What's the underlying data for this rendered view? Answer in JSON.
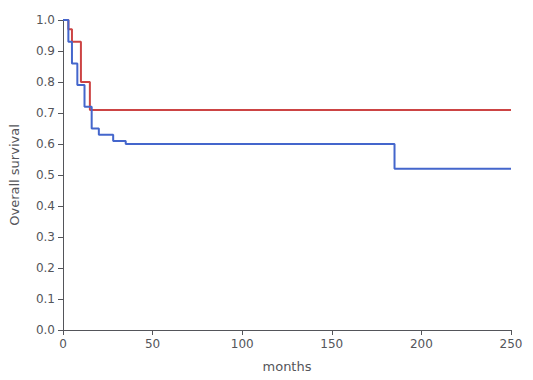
{
  "chart_data": {
    "type": "line",
    "line_style": "step",
    "xlabel": "months",
    "ylabel": "Overall survival",
    "series": [
      {
        "color": "#cc4444",
        "x": [
          0,
          3,
          5,
          10,
          15,
          35,
          250
        ],
        "values": [
          1.0,
          0.97,
          0.93,
          0.8,
          0.71,
          0.71,
          0.71
        ]
      },
      {
        "color": "#4466cc",
        "x": [
          0,
          3,
          5,
          8,
          12,
          16,
          20,
          28,
          35,
          105,
          185,
          250
        ],
        "values": [
          1.0,
          0.93,
          0.86,
          0.79,
          0.72,
          0.65,
          0.63,
          0.61,
          0.6,
          0.6,
          0.52,
          0.52
        ]
      }
    ],
    "xlim": [
      0,
      250
    ],
    "xticks": [
      0,
      50,
      100,
      150,
      200,
      250
    ],
    "ylim": [
      0.0,
      1.0
    ],
    "yticks": [
      {
        "value": 0,
        "label": "0.0"
      },
      0.1,
      0.2,
      0.3,
      0.4,
      0.5,
      0.6,
      0.7,
      0.8,
      0.9,
      {
        "value": 1,
        "label": "1.0"
      }
    ],
    "grid": false
  }
}
